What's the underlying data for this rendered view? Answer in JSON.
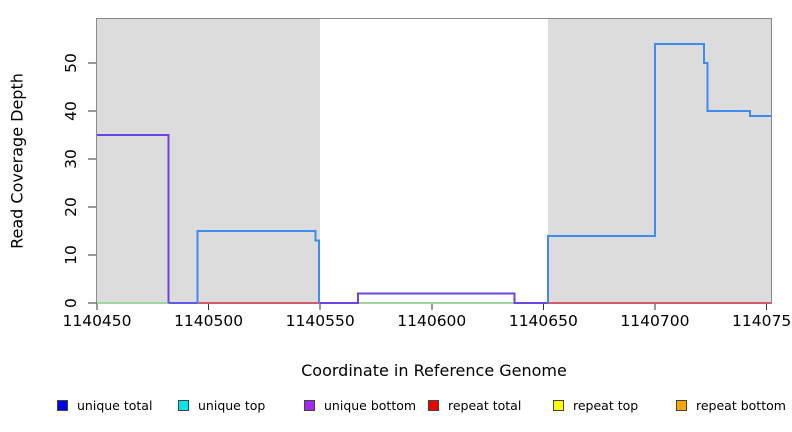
{
  "chart_data": {
    "type": "line",
    "subtype": "step-coverage",
    "title": "",
    "xlabel": "Coordinate in Reference Genome",
    "ylabel": "Read Coverage Depth",
    "xlim": [
      1140450,
      1140752
    ],
    "ylim": [
      0,
      59.2
    ],
    "grid": false,
    "x_ticks": {
      "values": [
        1140450,
        1140500,
        1140550,
        1140600,
        1140650,
        1140700,
        1140750
      ],
      "labels": [
        "1140450",
        "1140500",
        "1140550",
        "1140600",
        "1140650",
        "1140700",
        "1140750"
      ]
    },
    "y_ticks": {
      "values": [
        0,
        10,
        20,
        30,
        40,
        50
      ],
      "labels": [
        "0",
        "10",
        "20",
        "30",
        "40",
        "50"
      ]
    },
    "shaded_regions": [
      {
        "name": "repeat-region-left",
        "x0": 1140450,
        "x1": 1140550
      },
      {
        "name": "repeat-region-right",
        "x0": 1140652,
        "x1": 1140752
      }
    ],
    "region_fill": "#dcdcdc",
    "box_color": "#8a8a8a",
    "tick_color": "#333333",
    "series": [
      {
        "name": "baseline-green-left",
        "color": "#9fd69f",
        "width": 1.6,
        "points": [
          [
            1140450,
            0
          ],
          [
            1140482,
            0
          ]
        ]
      },
      {
        "name": "baseline-green-mid",
        "color": "#9fd69f",
        "width": 1.6,
        "points": [
          [
            1140567,
            0
          ],
          [
            1140637,
            0
          ]
        ]
      },
      {
        "name": "repeat-total-left",
        "color": "#d4596b",
        "width": 1.6,
        "points": [
          [
            1140495,
            0
          ],
          [
            1140550,
            0
          ]
        ]
      },
      {
        "name": "repeat-total-right",
        "color": "#d4596b",
        "width": 1.6,
        "points": [
          [
            1140652,
            0
          ],
          [
            1140752,
            0
          ]
        ]
      },
      {
        "name": "baseline-indigo",
        "color": "#5b5be8",
        "width": 1.8,
        "points": [
          [
            1140482,
            0
          ],
          [
            1140495,
            0
          ]
        ]
      },
      {
        "name": "unique-bottom-left",
        "color": "#6b46e0",
        "width": 2,
        "points": [
          [
            1140450,
            35
          ],
          [
            1140482,
            35
          ],
          [
            1140482,
            0
          ]
        ]
      },
      {
        "name": "unique-bottom-mid",
        "color": "#6b46e0",
        "width": 2,
        "points": [
          [
            1140550,
            0
          ],
          [
            1140567,
            0
          ],
          [
            1140567,
            2
          ],
          [
            1140637,
            2
          ],
          [
            1140637,
            0
          ],
          [
            1140652,
            0
          ]
        ]
      },
      {
        "name": "unique-total-left",
        "color": "#3e8bf2",
        "width": 2,
        "points": [
          [
            1140495,
            0
          ],
          [
            1140495,
            15
          ],
          [
            1140548,
            15
          ],
          [
            1140548,
            13
          ],
          [
            1140549.5,
            13
          ],
          [
            1140549.5,
            0
          ]
        ]
      },
      {
        "name": "unique-total-right",
        "color": "#3e8bf2",
        "width": 2,
        "points": [
          [
            1140652,
            0
          ],
          [
            1140652,
            14
          ],
          [
            1140700,
            14
          ],
          [
            1140700,
            54
          ],
          [
            1140722,
            54
          ],
          [
            1140722,
            50
          ],
          [
            1140723.5,
            50
          ],
          [
            1140723.5,
            40
          ],
          [
            1140742.5,
            40
          ],
          [
            1140742.5,
            39
          ],
          [
            1140752,
            39
          ]
        ]
      }
    ],
    "legend": [
      {
        "label": "unique total",
        "color": "#0000ee"
      },
      {
        "label": "unique top",
        "color": "#00e6e6"
      },
      {
        "label": "unique bottom",
        "color": "#a428f0"
      },
      {
        "label": "repeat total",
        "color": "#ee0000"
      },
      {
        "label": "repeat top",
        "color": "#ffff00"
      },
      {
        "label": "repeat bottom",
        "color": "#ffa500"
      }
    ]
  }
}
